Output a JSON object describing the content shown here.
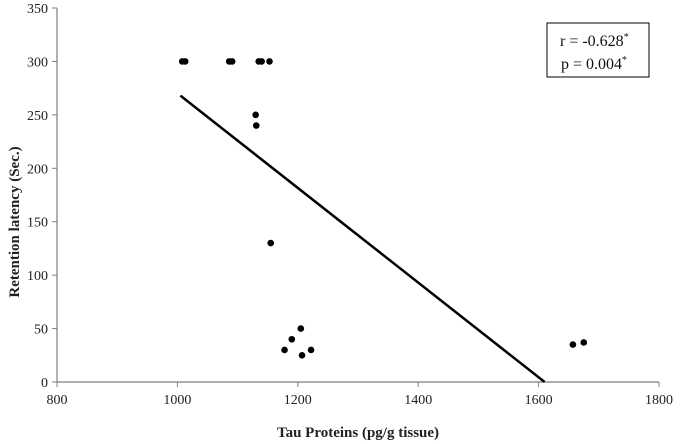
{
  "chart_data": {
    "type": "scatter",
    "title": "",
    "xlabel": "Tau Proteins (pg/g tissue)",
    "ylabel": "Retention latency (Sec.)",
    "xlim": [
      800,
      1800
    ],
    "ylim": [
      0,
      350
    ],
    "xticks": [
      800,
      1000,
      1200,
      1400,
      1600,
      1800
    ],
    "yticks": [
      0,
      50,
      100,
      150,
      200,
      250,
      300,
      350
    ],
    "grid": false,
    "series": [
      {
        "points": [
          {
            "x": 1008,
            "y": 300
          },
          {
            "x": 1013,
            "y": 300
          },
          {
            "x": 1086,
            "y": 300
          },
          {
            "x": 1091,
            "y": 300
          },
          {
            "x": 1135,
            "y": 300
          },
          {
            "x": 1140,
            "y": 300
          },
          {
            "x": 1153,
            "y": 300
          },
          {
            "x": 1130,
            "y": 250
          },
          {
            "x": 1131,
            "y": 240
          },
          {
            "x": 1155,
            "y": 130
          },
          {
            "x": 1205,
            "y": 50
          },
          {
            "x": 1190,
            "y": 40
          },
          {
            "x": 1178,
            "y": 30
          },
          {
            "x": 1222,
            "y": 30
          },
          {
            "x": 1207,
            "y": 25
          },
          {
            "x": 1657,
            "y": 35
          },
          {
            "x": 1675,
            "y": 37
          }
        ]
      }
    ],
    "trendline": {
      "x": [
        1005,
        1610
      ],
      "y": [
        268,
        0
      ]
    },
    "annotation": {
      "r_text": "r = -0.628",
      "r_sup": "*",
      "p_text": "p = 0.004",
      "p_sup": "*"
    },
    "colors": {
      "points": "#000000",
      "line": "#000000",
      "axis": "#7f7f7f"
    }
  }
}
